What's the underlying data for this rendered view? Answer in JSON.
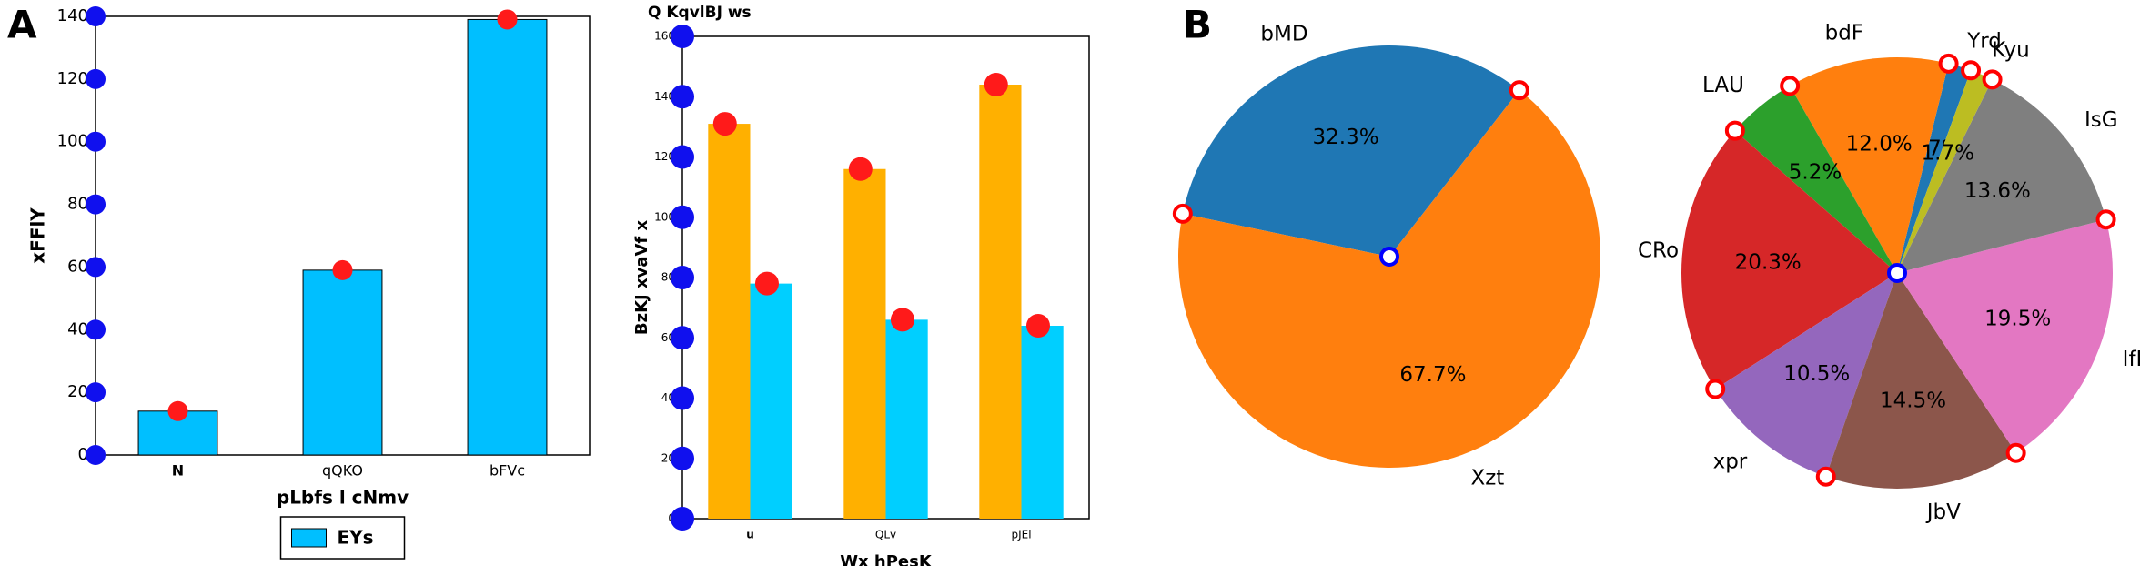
{
  "panel_labels": [
    "A",
    "B"
  ],
  "chart_data": [
    {
      "type": "bar",
      "xlabel": "pLbfs l cNmv",
      "ylabel": "xFFlY",
      "categories": [
        "N",
        "qQKO",
        "bFVc"
      ],
      "series": [
        {
          "name": "EYs",
          "color": "#00bfff",
          "values": [
            14,
            59,
            139
          ]
        }
      ],
      "edgecolor": "#000000",
      "ylim": [
        0,
        140
      ],
      "yticks": [
        0,
        20,
        40,
        60,
        80,
        100,
        120,
        140
      ],
      "legend": "lower center"
    },
    {
      "type": "bar",
      "title": "Q KqvlBJ ws",
      "xlabel": "Wx hPesK",
      "ylabel": "BzKJ xvaVf x",
      "categories": [
        "u",
        "QLv",
        "pJEl"
      ],
      "series": [
        {
          "color": "#ffb000",
          "values": [
            131,
            116,
            144
          ]
        },
        {
          "color": "#00cfff",
          "values": [
            78,
            66,
            64
          ]
        }
      ],
      "ylim": [
        0,
        160
      ],
      "yticks": [
        0,
        20,
        40,
        60,
        80,
        100,
        120,
        140,
        160
      ]
    },
    {
      "type": "pie",
      "labels": [
        "bMD",
        "Xzt"
      ],
      "values": [
        32.3,
        67.7
      ],
      "value_labels": [
        "32.3%",
        "67.7%"
      ],
      "colors": [
        "#1f77b4",
        "#ff7f0e"
      ],
      "startangle": 52,
      "annotations": [
        "CRo"
      ]
    },
    {
      "type": "pie",
      "labels": [
        "Yrd",
        "bdF",
        "LAU",
        null,
        "xpr",
        "JbV",
        "IfF",
        "IsG",
        "Kyu"
      ],
      "values": [
        1.7,
        12.0,
        5.2,
        20.3,
        10.5,
        14.5,
        19.5,
        13.6,
        1.7
      ],
      "value_labels": [
        "1.7%",
        "12.0%",
        "5.2%",
        "20.3%",
        "10.5%",
        "14.5%",
        "19.5%",
        "13.6%",
        "1.7%"
      ],
      "colors": [
        "#1f77b4",
        "#ff7f0e",
        "#2ca02c",
        "#d62728",
        "#9467bd",
        "#8c564b",
        "#e377c2",
        "#7f7f7f",
        "#bcbd22"
      ],
      "startangle": 70
    }
  ]
}
